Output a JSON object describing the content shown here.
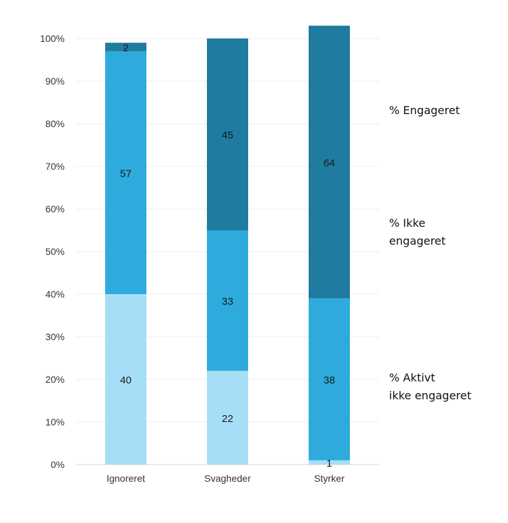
{
  "chart_data": {
    "type": "bar",
    "stacked": true,
    "categories": [
      "Ignoreret",
      "Svagheder",
      "Styrker"
    ],
    "series": [
      {
        "name": "% Aktivt ikke engageret",
        "values": [
          40,
          22,
          1
        ],
        "color": "#a6def7"
      },
      {
        "name": "% Ikke engageret",
        "values": [
          57,
          33,
          38
        ],
        "color": "#2eaadc"
      },
      {
        "name": "% Engageret",
        "values": [
          2,
          45,
          64
        ],
        "color": "#1f7ba0"
      }
    ],
    "ylim": [
      0,
      100
    ],
    "yticks": [
      "0%",
      "10%",
      "20%",
      "30%",
      "40%",
      "50%",
      "60%",
      "70%",
      "80%",
      "90%",
      "100%"
    ],
    "grid": true,
    "legend_position": "right"
  },
  "legend": {
    "engaged_label": "% Engageret",
    "not_engaged_line1": "% Ikke",
    "not_engaged_line2": "engageret",
    "active_not_engaged_line1": "% Aktivt",
    "active_not_engaged_line2": "ikke engageret"
  }
}
